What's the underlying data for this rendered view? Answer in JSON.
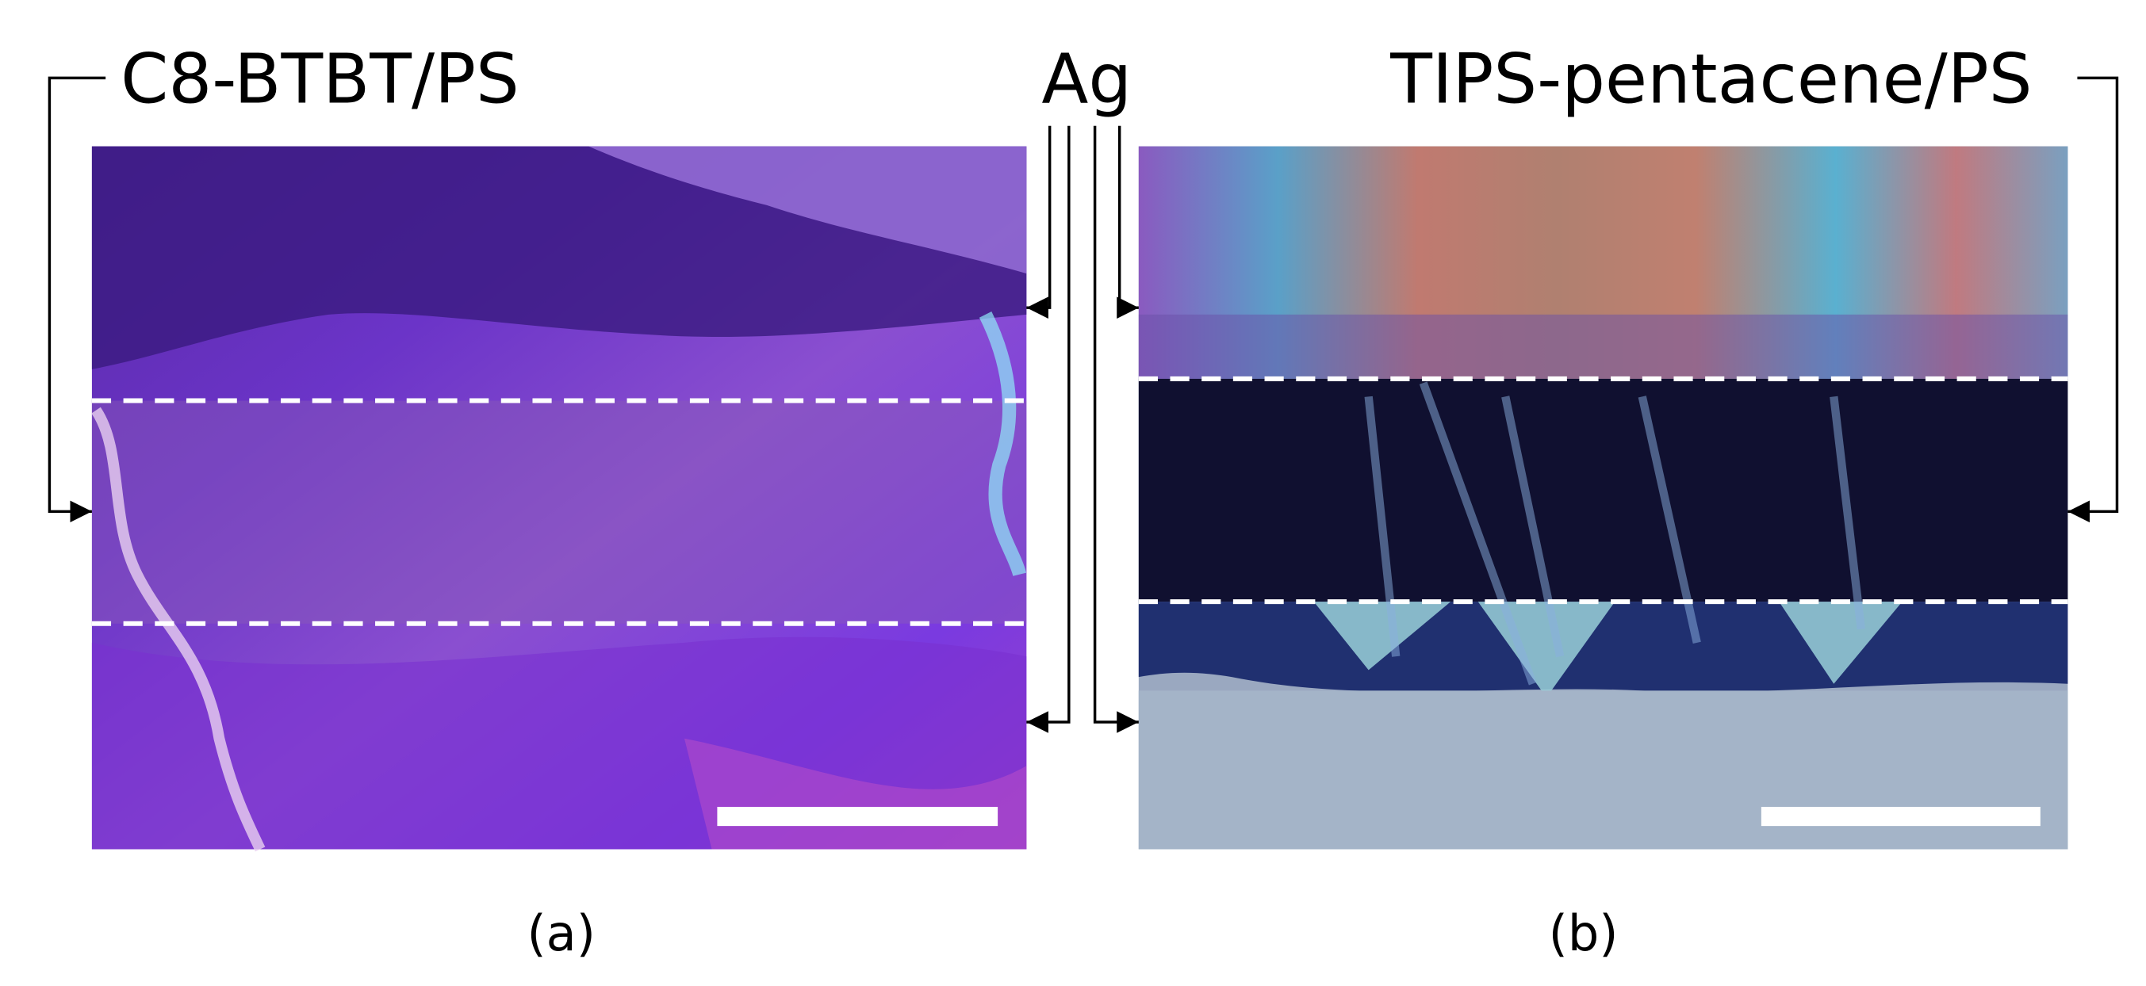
{
  "panels": [
    {
      "title": "C8-BTBT/PS",
      "label": "(a)"
    },
    {
      "title": "TIPS-pentacene/PS",
      "label": "(b)"
    }
  ],
  "electrode": "Ag"
}
